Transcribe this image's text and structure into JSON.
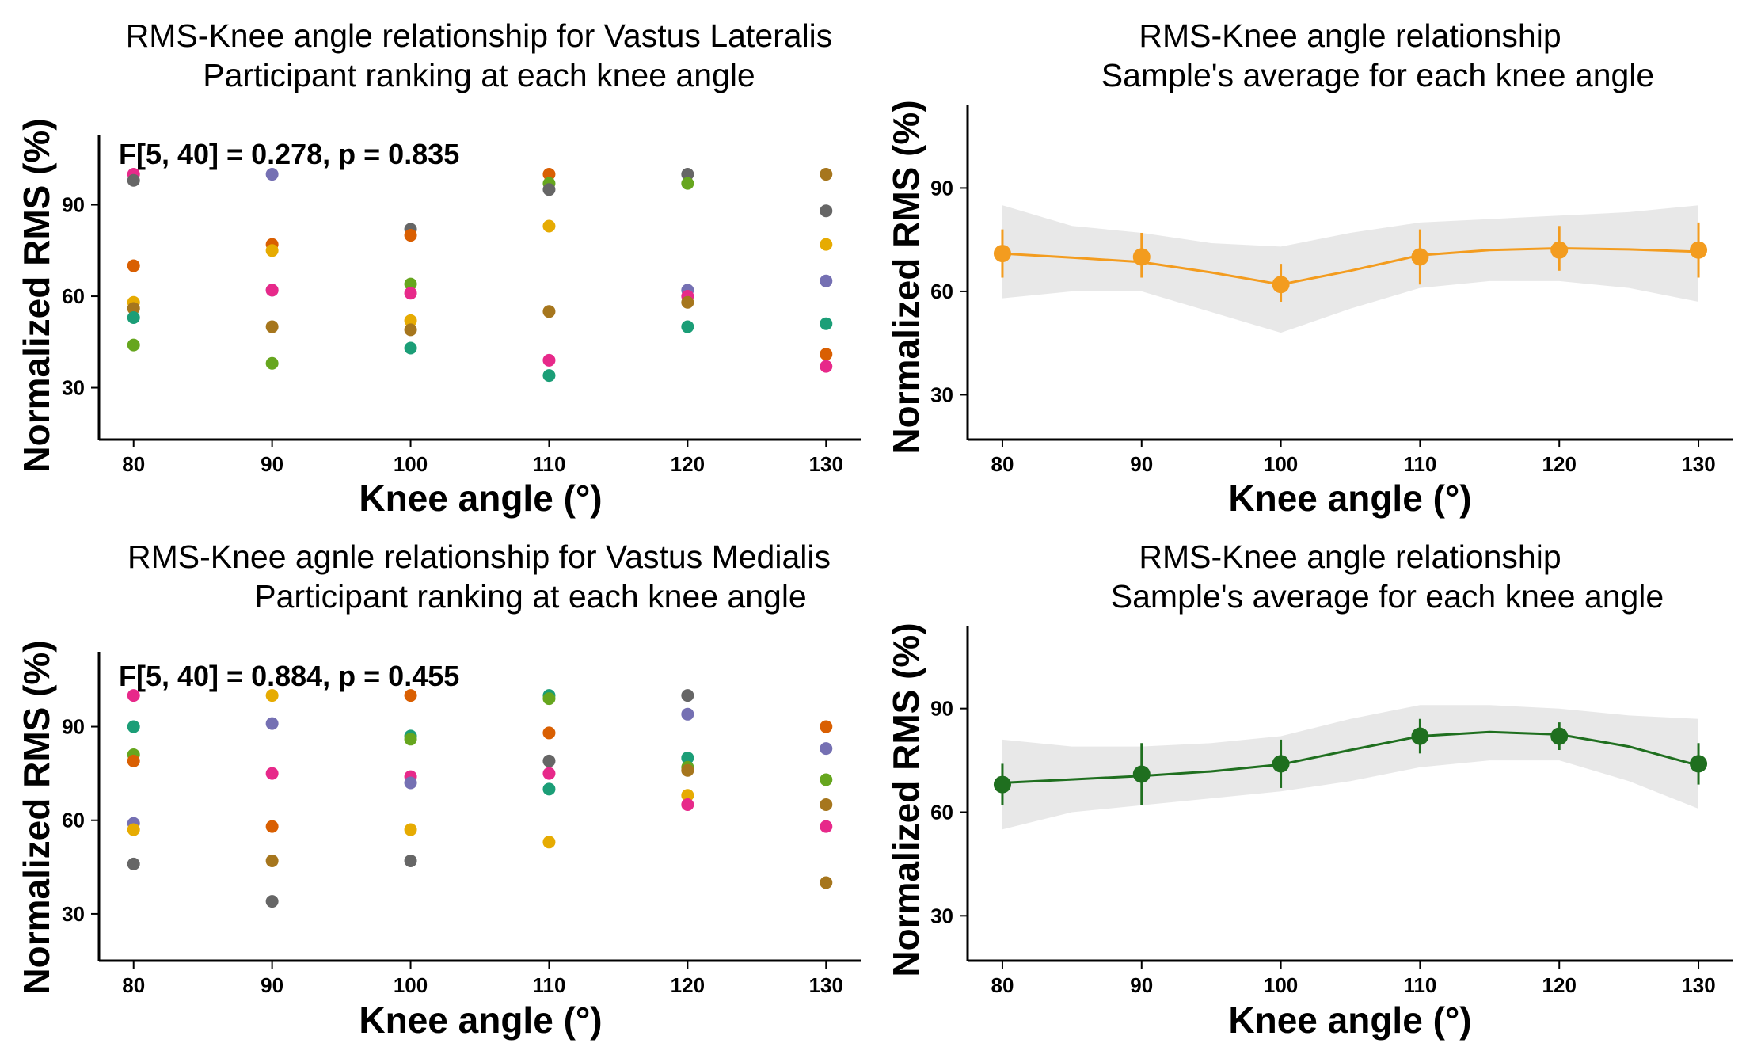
{
  "chart_data": [
    {
      "id": "vl-scatter",
      "type": "scatter",
      "title_lines": [
        "RMS-Knee angle relationship for Vastus Lateralis",
        "Participant ranking at each knee angle"
      ],
      "annotation": "F[5, 40] = 0.278, p = 0.835",
      "xlabel": "Knee angle (°)",
      "ylabel": "Normalized RMS (%)",
      "x_ticks": [
        80,
        90,
        100,
        110,
        120,
        130
      ],
      "y_ticks": [
        30,
        60,
        90
      ],
      "xlim": [
        77.5,
        132.5
      ],
      "ylim": [
        13,
        113
      ],
      "points": [
        {
          "x": 80,
          "y": 100,
          "color": "#e7298a"
        },
        {
          "x": 80,
          "y": 98,
          "color": "#666666"
        },
        {
          "x": 80,
          "y": 70,
          "color": "#d95f02"
        },
        {
          "x": 80,
          "y": 58,
          "color": "#e6ab02"
        },
        {
          "x": 80,
          "y": 56,
          "color": "#a6761d"
        },
        {
          "x": 80,
          "y": 53,
          "color": "#1b9e77"
        },
        {
          "x": 80,
          "y": 44,
          "color": "#66a61e"
        },
        {
          "x": 90,
          "y": 100,
          "color": "#7570b3"
        },
        {
          "x": 90,
          "y": 77,
          "color": "#d95f02"
        },
        {
          "x": 90,
          "y": 75,
          "color": "#e6ab02"
        },
        {
          "x": 90,
          "y": 62,
          "color": "#7570b3"
        },
        {
          "x": 90,
          "y": 62,
          "color": "#e7298a"
        },
        {
          "x": 90,
          "y": 50,
          "color": "#a6761d"
        },
        {
          "x": 90,
          "y": 38,
          "color": "#66a61e"
        },
        {
          "x": 100,
          "y": 82,
          "color": "#666666"
        },
        {
          "x": 100,
          "y": 80,
          "color": "#d95f02"
        },
        {
          "x": 100,
          "y": 64,
          "color": "#66a61e"
        },
        {
          "x": 100,
          "y": 61,
          "color": "#e7298a"
        },
        {
          "x": 100,
          "y": 52,
          "color": "#e6ab02"
        },
        {
          "x": 100,
          "y": 49,
          "color": "#a6761d"
        },
        {
          "x": 100,
          "y": 43,
          "color": "#1b9e77"
        },
        {
          "x": 110,
          "y": 100,
          "color": "#d95f02"
        },
        {
          "x": 110,
          "y": 97,
          "color": "#66a61e"
        },
        {
          "x": 110,
          "y": 95,
          "color": "#666666"
        },
        {
          "x": 110,
          "y": 83,
          "color": "#e6ab02"
        },
        {
          "x": 110,
          "y": 55,
          "color": "#a6761d"
        },
        {
          "x": 110,
          "y": 39,
          "color": "#e7298a"
        },
        {
          "x": 110,
          "y": 34,
          "color": "#1b9e77"
        },
        {
          "x": 120,
          "y": 100,
          "color": "#666666"
        },
        {
          "x": 120,
          "y": 97,
          "color": "#66a61e"
        },
        {
          "x": 120,
          "y": 62,
          "color": "#7570b3"
        },
        {
          "x": 120,
          "y": 60,
          "color": "#e7298a"
        },
        {
          "x": 120,
          "y": 58,
          "color": "#a6761d"
        },
        {
          "x": 120,
          "y": 50,
          "color": "#1b9e77"
        },
        {
          "x": 130,
          "y": 100,
          "color": "#a6761d"
        },
        {
          "x": 130,
          "y": 88,
          "color": "#666666"
        },
        {
          "x": 130,
          "y": 77,
          "color": "#e6ab02"
        },
        {
          "x": 130,
          "y": 65,
          "color": "#7570b3"
        },
        {
          "x": 130,
          "y": 51,
          "color": "#1b9e77"
        },
        {
          "x": 130,
          "y": 41,
          "color": "#d95f02"
        },
        {
          "x": 130,
          "y": 37,
          "color": "#e7298a"
        }
      ]
    },
    {
      "id": "vl-mean",
      "type": "line",
      "title_lines": [
        "RMS-Knee angle relationship",
        "Sample's average for each knee angle"
      ],
      "xlabel": "Knee angle (°)",
      "ylabel": "Normalized RMS (%)",
      "x_ticks": [
        80,
        90,
        100,
        110,
        120,
        130
      ],
      "y_ticks": [
        30,
        60,
        90
      ],
      "xlim": [
        77.5,
        132.5
      ],
      "ylim": [
        17,
        114
      ],
      "color": "#f39c1f",
      "means": [
        {
          "x": 80,
          "y": 71,
          "lo": 64,
          "hi": 78
        },
        {
          "x": 90,
          "y": 70,
          "lo": 64,
          "hi": 77
        },
        {
          "x": 100,
          "y": 62,
          "lo": 57,
          "hi": 68
        },
        {
          "x": 110,
          "y": 70,
          "lo": 62,
          "hi": 78
        },
        {
          "x": 120,
          "y": 72,
          "lo": 66,
          "hi": 79
        },
        {
          "x": 130,
          "y": 72,
          "lo": 64,
          "hi": 80
        }
      ],
      "smooth": [
        [
          80,
          71
        ],
        [
          85,
          69.8
        ],
        [
          90,
          68.5
        ],
        [
          95,
          65.5
        ],
        [
          100,
          62
        ],
        [
          105,
          66
        ],
        [
          110,
          70.5
        ],
        [
          115,
          72
        ],
        [
          120,
          72.5
        ],
        [
          125,
          72.2
        ],
        [
          130,
          71.5
        ]
      ],
      "band": [
        {
          "x": 80,
          "lo": 58,
          "hi": 85
        },
        {
          "x": 85,
          "lo": 60,
          "hi": 79
        },
        {
          "x": 90,
          "lo": 60,
          "hi": 77
        },
        {
          "x": 95,
          "lo": 54,
          "hi": 74
        },
        {
          "x": 100,
          "lo": 48,
          "hi": 73
        },
        {
          "x": 105,
          "lo": 55,
          "hi": 77
        },
        {
          "x": 110,
          "lo": 61,
          "hi": 80
        },
        {
          "x": 115,
          "lo": 63,
          "hi": 81
        },
        {
          "x": 120,
          "lo": 63,
          "hi": 82
        },
        {
          "x": 125,
          "lo": 61,
          "hi": 83
        },
        {
          "x": 130,
          "lo": 57,
          "hi": 85
        }
      ]
    },
    {
      "id": "vm-scatter",
      "type": "scatter",
      "title_lines": [
        "RMS-Knee agnle relationship for Vastus Medialis",
        "Participant ranking at each knee angle"
      ],
      "annotation": "F[5, 40] = 0.884, p = 0.455",
      "xlabel": "Knee angle (°)",
      "ylabel": "Normalized RMS (%)",
      "x_ticks": [
        80,
        90,
        100,
        110,
        120,
        130
      ],
      "y_ticks": [
        30,
        60,
        90
      ],
      "xlim": [
        77.5,
        132.5
      ],
      "ylim": [
        15,
        114
      ],
      "points": [
        {
          "x": 80,
          "y": 100,
          "color": "#e7298a"
        },
        {
          "x": 80,
          "y": 90,
          "color": "#1b9e77"
        },
        {
          "x": 80,
          "y": 81,
          "color": "#66a61e"
        },
        {
          "x": 80,
          "y": 79,
          "color": "#d95f02"
        },
        {
          "x": 80,
          "y": 59,
          "color": "#7570b3"
        },
        {
          "x": 80,
          "y": 57,
          "color": "#e6ab02"
        },
        {
          "x": 80,
          "y": 46,
          "color": "#666666"
        },
        {
          "x": 90,
          "y": 100,
          "color": "#e6ab02"
        },
        {
          "x": 90,
          "y": 91,
          "color": "#7570b3"
        },
        {
          "x": 90,
          "y": 75,
          "color": "#e7298a"
        },
        {
          "x": 90,
          "y": 58,
          "color": "#d95f02"
        },
        {
          "x": 90,
          "y": 47,
          "color": "#a6761d"
        },
        {
          "x": 90,
          "y": 34,
          "color": "#666666"
        },
        {
          "x": 100,
          "y": 100,
          "color": "#d95f02"
        },
        {
          "x": 100,
          "y": 87,
          "color": "#1b9e77"
        },
        {
          "x": 100,
          "y": 86,
          "color": "#66a61e"
        },
        {
          "x": 100,
          "y": 74,
          "color": "#e7298a"
        },
        {
          "x": 100,
          "y": 72,
          "color": "#7570b3"
        },
        {
          "x": 100,
          "y": 57,
          "color": "#e6ab02"
        },
        {
          "x": 100,
          "y": 47,
          "color": "#666666"
        },
        {
          "x": 110,
          "y": 100,
          "color": "#1b9e77"
        },
        {
          "x": 110,
          "y": 99,
          "color": "#66a61e"
        },
        {
          "x": 110,
          "y": 88,
          "color": "#d95f02"
        },
        {
          "x": 110,
          "y": 79,
          "color": "#666666"
        },
        {
          "x": 110,
          "y": 75,
          "color": "#e7298a"
        },
        {
          "x": 110,
          "y": 70,
          "color": "#1b9e77"
        },
        {
          "x": 110,
          "y": 53,
          "color": "#e6ab02"
        },
        {
          "x": 120,
          "y": 100,
          "color": "#666666"
        },
        {
          "x": 120,
          "y": 94,
          "color": "#7570b3"
        },
        {
          "x": 120,
          "y": 80,
          "color": "#1b9e77"
        },
        {
          "x": 120,
          "y": 77,
          "color": "#66a61e"
        },
        {
          "x": 120,
          "y": 76,
          "color": "#a6761d"
        },
        {
          "x": 120,
          "y": 68,
          "color": "#e6ab02"
        },
        {
          "x": 120,
          "y": 65,
          "color": "#e7298a"
        },
        {
          "x": 130,
          "y": 90,
          "color": "#d95f02"
        },
        {
          "x": 130,
          "y": 83,
          "color": "#7570b3"
        },
        {
          "x": 130,
          "y": 73,
          "color": "#66a61e"
        },
        {
          "x": 130,
          "y": 65,
          "color": "#a6761d"
        },
        {
          "x": 130,
          "y": 58,
          "color": "#e7298a"
        },
        {
          "x": 130,
          "y": 40,
          "color": "#a6761d"
        }
      ]
    },
    {
      "id": "vm-mean",
      "type": "line",
      "title_lines": [
        "RMS-Knee angle relationship",
        "Sample's average for each knee angle"
      ],
      "xlabel": "Knee angle (°)",
      "ylabel": "Normalized RMS (%)",
      "x_ticks": [
        80,
        90,
        100,
        110,
        120,
        130
      ],
      "y_ticks": [
        30,
        60,
        90
      ],
      "xlim": [
        77.5,
        132.5
      ],
      "ylim": [
        17,
        114
      ],
      "color": "#1f6f1f",
      "means": [
        {
          "x": 80,
          "y": 68,
          "lo": 62,
          "hi": 74
        },
        {
          "x": 90,
          "y": 71,
          "lo": 62,
          "hi": 80
        },
        {
          "x": 100,
          "y": 74,
          "lo": 67,
          "hi": 81
        },
        {
          "x": 110,
          "y": 82,
          "lo": 77,
          "hi": 87
        },
        {
          "x": 120,
          "y": 82,
          "lo": 78,
          "hi": 86
        },
        {
          "x": 130,
          "y": 74,
          "lo": 68,
          "hi": 80
        }
      ],
      "smooth": [
        [
          80,
          68.5
        ],
        [
          85,
          69.5
        ],
        [
          90,
          70.5
        ],
        [
          95,
          71.8
        ],
        [
          100,
          73.8
        ],
        [
          105,
          78
        ],
        [
          110,
          82
        ],
        [
          115,
          83.2
        ],
        [
          120,
          82.5
        ],
        [
          125,
          79
        ],
        [
          130,
          73.5
        ]
      ],
      "band": [
        {
          "x": 80,
          "lo": 55,
          "hi": 81
        },
        {
          "x": 85,
          "lo": 60,
          "hi": 79
        },
        {
          "x": 90,
          "lo": 62,
          "hi": 79
        },
        {
          "x": 95,
          "lo": 64,
          "hi": 80
        },
        {
          "x": 100,
          "lo": 66,
          "hi": 82
        },
        {
          "x": 105,
          "lo": 69,
          "hi": 87
        },
        {
          "x": 110,
          "lo": 73,
          "hi": 91
        },
        {
          "x": 115,
          "lo": 75,
          "hi": 91
        },
        {
          "x": 120,
          "lo": 75,
          "hi": 90
        },
        {
          "x": 125,
          "lo": 69,
          "hi": 88
        },
        {
          "x": 130,
          "lo": 61,
          "hi": 87
        }
      ]
    }
  ]
}
